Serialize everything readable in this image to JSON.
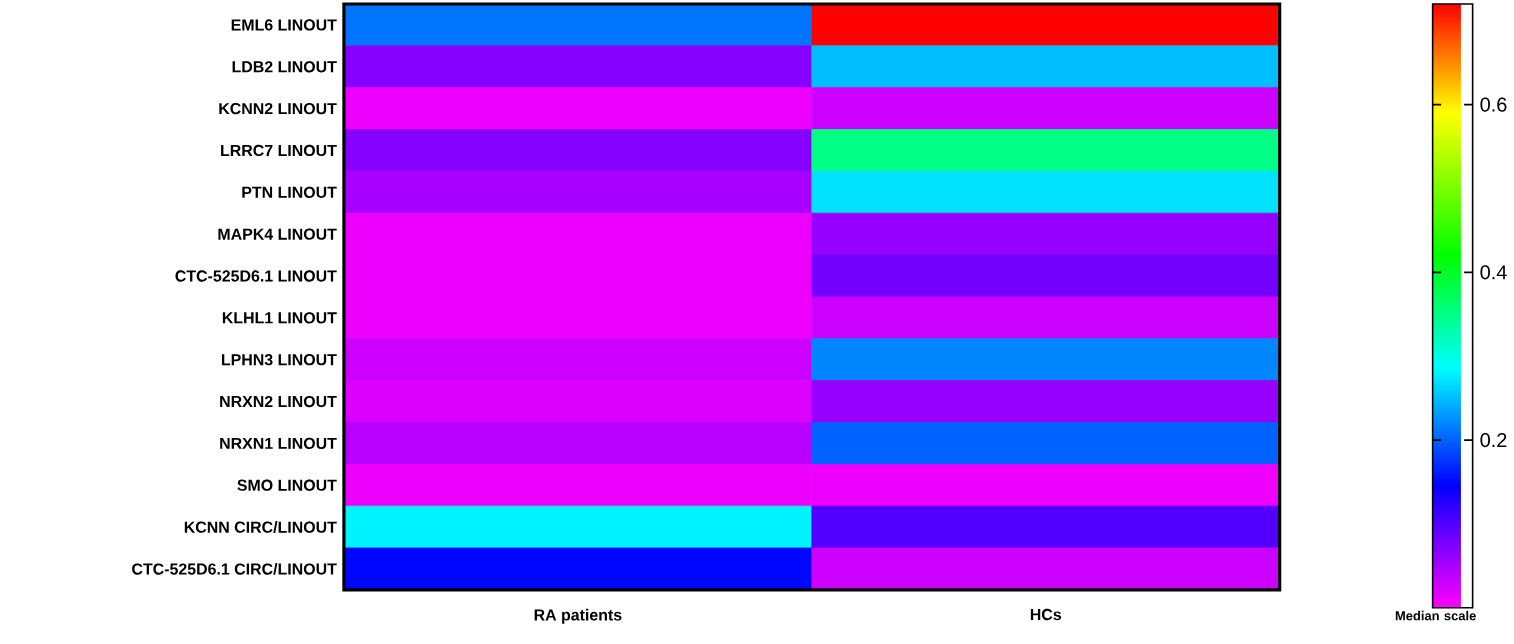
{
  "chart_data": {
    "type": "heatmap",
    "clabel": "Median scale",
    "categories": [
      "RA patients",
      "HCs"
    ],
    "y_categories": [
      "EML6 LINOUT",
      "LDB2 LINOUT",
      "KCNN2 LINOUT",
      "LRRC7 LINOUT",
      "PTN LINOUT",
      "MAPK4 LINOUT",
      "CTC-525D6.1 LINOUT",
      "KLHL1 LINOUT",
      "LPHN3 LINOUT",
      "NRXN2 LINOUT",
      "NRXN1 LINOUT",
      "SMO LINOUT",
      "KCNN CIRC/LINOUT",
      "CTC-525D6.1 CIRC/LINOUT"
    ],
    "cells": [
      [
        0.21,
        0.72
      ],
      [
        0.07,
        0.25
      ],
      [
        0.01,
        0.03
      ],
      [
        0.07,
        0.35
      ],
      [
        0.05,
        0.27
      ],
      [
        0.01,
        0.06
      ],
      [
        0.01,
        0.08
      ],
      [
        0.01,
        0.03
      ],
      [
        0.03,
        0.22
      ],
      [
        0.02,
        0.06
      ],
      [
        0.04,
        0.2
      ],
      [
        0.01,
        0.01
      ],
      [
        0.28,
        0.1
      ],
      [
        0.15,
        0.03
      ]
    ],
    "clim": [
      0,
      0.72
    ],
    "cticks": [
      0.2,
      0.4,
      0.6
    ]
  }
}
